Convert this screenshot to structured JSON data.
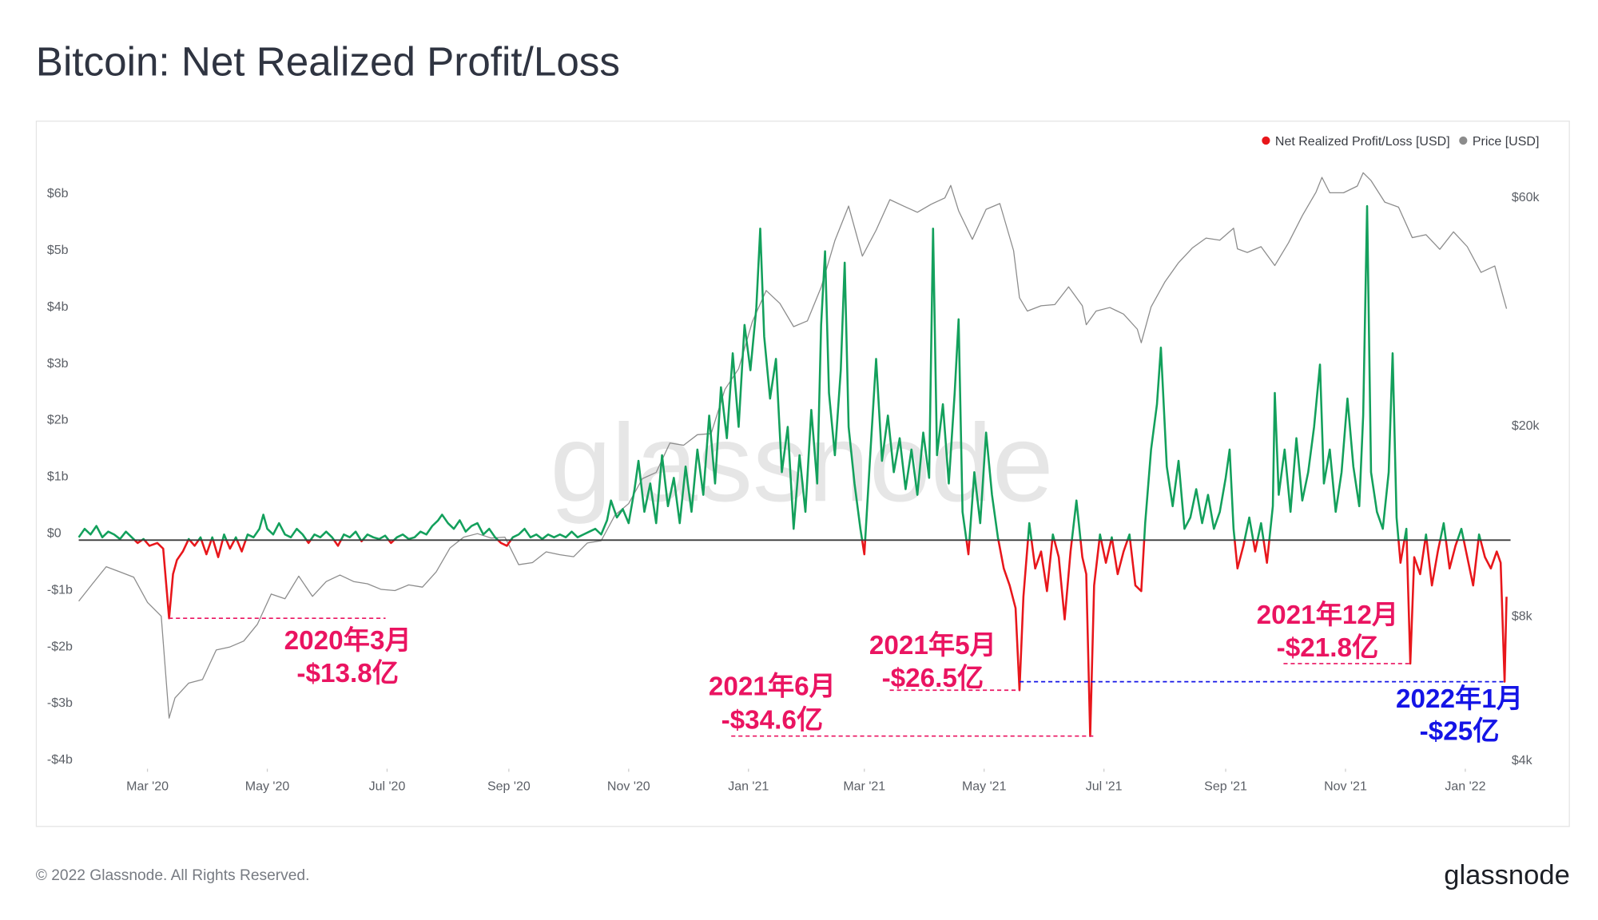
{
  "chart_data": {
    "type": "line",
    "title": "Bitcoin: Net Realized Profit/Loss",
    "watermark": "glassnode",
    "legend": "top-right",
    "grid": false,
    "xlim": [
      0,
      728
    ],
    "xticks": [
      {
        "value": 35,
        "label": "Mar '20"
      },
      {
        "value": 96,
        "label": "May '20"
      },
      {
        "value": 157,
        "label": "Jul '20"
      },
      {
        "value": 219,
        "label": "Sep '20"
      },
      {
        "value": 280,
        "label": "Nov '20"
      },
      {
        "value": 341,
        "label": "Jan '21"
      },
      {
        "value": 400,
        "label": "Mar '21"
      },
      {
        "value": 461,
        "label": "May '21"
      },
      {
        "value": 522,
        "label": "Jul '21"
      },
      {
        "value": 584,
        "label": "Sep '21"
      },
      {
        "value": 645,
        "label": "Nov '21"
      },
      {
        "value": 706,
        "label": "Jan '22"
      }
    ],
    "ylim": [
      -4,
      6
    ],
    "yticks": [
      {
        "value": 6,
        "label": "$6b"
      },
      {
        "value": 5,
        "label": "$5b"
      },
      {
        "value": 4,
        "label": "$4b"
      },
      {
        "value": 3,
        "label": "$3b"
      },
      {
        "value": 2,
        "label": "$2b"
      },
      {
        "value": 1,
        "label": "$1b"
      },
      {
        "value": 0,
        "label": "$0"
      },
      {
        "value": -1,
        "label": "-$1b"
      },
      {
        "value": -2,
        "label": "-$2b"
      },
      {
        "value": -3,
        "label": "-$3b"
      },
      {
        "value": -4,
        "label": "-$4b"
      }
    ],
    "y2log": true,
    "y2lim": [
      3880,
      59100
    ],
    "y2ticks": [
      {
        "value": 60000,
        "label": "$60k"
      },
      {
        "value": 20000,
        "label": "$20k"
      },
      {
        "value": 8000,
        "label": "$8k"
      },
      {
        "value": 4000,
        "label": "$4k"
      }
    ],
    "series": [
      {
        "name": "Net Realized Profit/Loss [USD]",
        "color": "#e8161b",
        "positive_color": "#13a05c",
        "x": [
          0,
          3,
          6,
          9,
          12,
          15,
          18,
          21,
          24,
          27,
          30,
          33,
          36,
          40,
          43,
          46,
          48,
          50,
          53,
          56,
          59,
          62,
          65,
          68,
          71,
          74,
          77,
          80,
          83,
          86,
          89,
          92,
          94,
          96,
          99,
          102,
          105,
          108,
          111,
          114,
          117,
          120,
          123,
          126,
          129,
          132,
          135,
          138,
          141,
          144,
          147,
          150,
          153,
          156,
          159,
          162,
          165,
          168,
          171,
          174,
          177,
          180,
          183,
          185,
          188,
          191,
          194,
          197,
          200,
          203,
          206,
          209,
          212,
          215,
          218,
          221,
          224,
          227,
          230,
          233,
          236,
          239,
          242,
          245,
          248,
          251,
          254,
          257,
          260,
          263,
          266,
          269,
          271,
          274,
          277,
          280,
          283,
          285,
          288,
          291,
          294,
          297,
          300,
          303,
          306,
          309,
          312,
          315,
          318,
          321,
          324,
          327,
          330,
          333,
          336,
          339,
          342,
          345,
          347,
          349,
          352,
          355,
          358,
          361,
          364,
          367,
          370,
          373,
          376,
          378,
          380,
          382,
          385,
          388,
          390,
          392,
          395,
          398,
          400,
          403,
          406,
          409,
          412,
          415,
          418,
          421,
          424,
          427,
          430,
          433,
          435,
          437,
          440,
          443,
          446,
          448,
          450,
          453,
          456,
          459,
          462,
          465,
          468,
          471,
          474,
          477,
          479,
          481,
          484,
          487,
          490,
          493,
          496,
          499,
          502,
          505,
          508,
          511,
          513,
          515,
          517,
          520,
          523,
          526,
          529,
          532,
          535,
          538,
          541,
          543,
          546,
          549,
          551,
          554,
          557,
          560,
          563,
          566,
          569,
          572,
          575,
          578,
          581,
          584,
          586,
          588,
          590,
          593,
          596,
          599,
          602,
          605,
          608,
          609,
          611,
          614,
          617,
          620,
          623,
          626,
          629,
          632,
          634,
          637,
          640,
          643,
          646,
          649,
          652,
          654,
          656,
          658,
          661,
          664,
          667,
          669,
          671,
          673,
          676,
          678,
          680,
          683,
          686,
          689,
          692,
          695,
          698,
          701,
          704,
          707,
          710,
          713,
          716,
          719,
          722,
          724,
          726,
          727
        ],
        "values": [
          0.05,
          0.2,
          0.1,
          0.25,
          0.05,
          0.15,
          0.1,
          0.02,
          0.15,
          0.05,
          -0.05,
          0.02,
          -0.1,
          -0.05,
          -0.15,
          -1.38,
          -0.6,
          -0.35,
          -0.2,
          0.02,
          -0.1,
          0.05,
          -0.25,
          0.05,
          -0.3,
          0.1,
          -0.15,
          0.05,
          -0.2,
          0.1,
          0.05,
          0.2,
          0.45,
          0.2,
          0.1,
          0.3,
          0.1,
          0.05,
          0.2,
          0.1,
          -0.05,
          0.1,
          0.05,
          0.15,
          0.05,
          -0.1,
          0.1,
          0.05,
          0.15,
          -0.02,
          0.1,
          0.05,
          0.02,
          0.08,
          -0.05,
          0.05,
          0.1,
          0.02,
          0.05,
          0.15,
          0.1,
          0.25,
          0.35,
          0.45,
          0.3,
          0.2,
          0.35,
          0.15,
          0.25,
          0.3,
          0.1,
          0.2,
          0.05,
          -0.05,
          -0.1,
          0.05,
          0.1,
          0.2,
          0.05,
          0.1,
          0.02,
          0.1,
          0.05,
          0.1,
          0.05,
          0.15,
          0.05,
          0.1,
          0.15,
          0.2,
          0.1,
          0.35,
          0.7,
          0.4,
          0.55,
          0.3,
          0.9,
          1.4,
          0.5,
          1.0,
          0.3,
          1.5,
          0.6,
          1.1,
          0.3,
          1.3,
          0.5,
          1.6,
          0.8,
          2.2,
          1.0,
          2.7,
          1.8,
          3.3,
          2.0,
          3.8,
          3.0,
          4.1,
          5.5,
          3.6,
          2.5,
          3.2,
          1.2,
          2.0,
          0.2,
          1.5,
          0.5,
          2.3,
          1.0,
          3.8,
          5.1,
          2.6,
          1.5,
          3.0,
          4.9,
          2.0,
          1.0,
          0.2,
          -0.25,
          1.5,
          3.2,
          1.4,
          2.2,
          1.2,
          1.8,
          0.9,
          1.6,
          0.8,
          1.9,
          1.1,
          5.5,
          1.5,
          2.4,
          1.0,
          2.6,
          3.9,
          0.5,
          -0.25,
          1.2,
          0.3,
          1.9,
          0.8,
          0.05,
          -0.5,
          -0.8,
          -1.2,
          -2.65,
          -1.0,
          0.3,
          -0.5,
          -0.2,
          -0.9,
          0.1,
          -0.3,
          -1.4,
          -0.2,
          0.7,
          -0.3,
          -0.6,
          -3.46,
          -0.8,
          0.1,
          -0.4,
          0.05,
          -0.6,
          -0.2,
          0.1,
          -0.8,
          -0.9,
          0.3,
          1.6,
          2.4,
          3.4,
          1.3,
          0.6,
          1.4,
          0.2,
          0.4,
          0.9,
          0.3,
          0.8,
          0.2,
          0.5,
          1.1,
          1.6,
          0.2,
          -0.5,
          -0.1,
          0.4,
          -0.2,
          0.3,
          -0.4,
          0.6,
          2.6,
          0.8,
          1.6,
          0.5,
          1.8,
          0.7,
          1.2,
          2.0,
          3.1,
          1.0,
          1.6,
          0.5,
          1.2,
          2.5,
          1.3,
          0.6,
          2.2,
          5.9,
          1.2,
          0.5,
          0.2,
          1.2,
          3.3,
          0.4,
          -0.4,
          0.2,
          -2.18,
          -0.3,
          -0.6,
          0.1,
          -0.8,
          -0.2,
          0.3,
          -0.5,
          -0.1,
          0.2,
          -0.3,
          -0.8,
          0.1,
          -0.3,
          -0.5,
          -0.2,
          -0.4,
          -2.5,
          -1.0
        ]
      },
      {
        "name": "Price [USD]",
        "color": "#8c8c8c",
        "axis": "y2",
        "x": [
          0,
          7,
          14,
          21,
          28,
          35,
          42,
          46,
          49,
          56,
          63,
          70,
          77,
          84,
          91,
          98,
          105,
          112,
          119,
          126,
          133,
          140,
          147,
          154,
          161,
          168,
          175,
          182,
          189,
          196,
          203,
          210,
          217,
          224,
          231,
          238,
          245,
          252,
          259,
          266,
          273,
          280,
          287,
          294,
          301,
          308,
          315,
          322,
          329,
          336,
          343,
          350,
          357,
          364,
          371,
          378,
          385,
          392,
          399,
          406,
          413,
          420,
          427,
          434,
          441,
          444,
          448,
          455,
          462,
          469,
          476,
          479,
          483,
          490,
          497,
          504,
          511,
          513,
          518,
          525,
          532,
          539,
          541,
          546,
          553,
          560,
          567,
          574,
          581,
          588,
          590,
          595,
          602,
          609,
          616,
          623,
          630,
          633,
          637,
          644,
          651,
          654,
          658,
          665,
          672,
          679,
          686,
          693,
          700,
          707,
          714,
          721,
          726,
          727
        ],
        "values": [
          8600,
          9350,
          10150,
          9900,
          9650,
          8550,
          8000,
          4900,
          5400,
          5800,
          5900,
          6800,
          6900,
          7100,
          7700,
          8900,
          8700,
          9700,
          8800,
          9450,
          9750,
          9450,
          9350,
          9100,
          9050,
          9300,
          9200,
          9900,
          11100,
          11700,
          11900,
          11650,
          11700,
          10250,
          10350,
          10900,
          10750,
          10650,
          11380,
          11500,
          13000,
          13750,
          15500,
          15970,
          18400,
          18200,
          19150,
          19250,
          23800,
          26300,
          33000,
          38300,
          36000,
          32200,
          33100,
          38900,
          48700,
          57500,
          45200,
          51200,
          59300,
          57500,
          55800,
          58000,
          59800,
          63500,
          56200,
          49000,
          56600,
          58200,
          46400,
          37000,
          34700,
          35600,
          35800,
          39000,
          35600,
          32500,
          34700,
          35300,
          34200,
          31800,
          29800,
          35400,
          39900,
          43800,
          47000,
          49300,
          48800,
          51700,
          46800,
          46000,
          47300,
          43200,
          48200,
          54900,
          61500,
          66000,
          61300,
          61300,
          63300,
          67500,
          65000,
          58600,
          57200,
          49400,
          50100,
          46700,
          50800,
          47300,
          41800,
          43100,
          36300,
          35100
        ]
      }
    ],
    "annotations": [
      {
        "label": "2020年3月",
        "value_label": "-$13.8亿",
        "value": -1.38,
        "color": "#ea1461"
      },
      {
        "label": "2021年6月",
        "value_label": "-$34.6亿",
        "value": -3.46,
        "color": "#ea1461"
      },
      {
        "label": "2021年5月",
        "value_label": "-$26.5亿",
        "value": -2.65,
        "color": "#ea1461"
      },
      {
        "label": "2021年12月",
        "value_label": "-$21.8亿",
        "value": -2.18,
        "color": "#ea1461"
      },
      {
        "label": "2022年1月",
        "value_label": "-$25亿",
        "value": -2.5,
        "color": "#1414e6"
      }
    ]
  },
  "footer": {
    "copyright": "© 2022 Glassnode. All Rights Reserved.",
    "logo": "glassnode"
  }
}
